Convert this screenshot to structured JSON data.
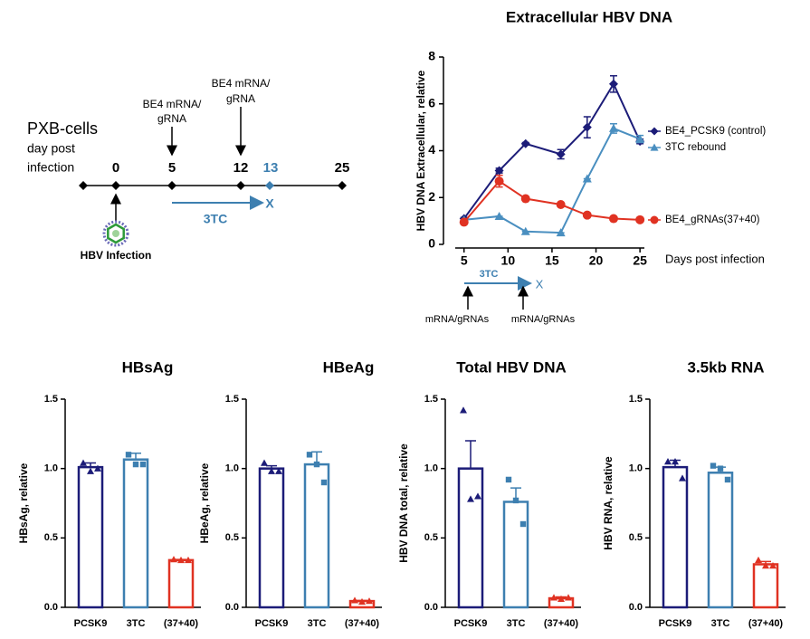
{
  "timeline": {
    "title": "PXB-cells",
    "axis_label": [
      "day post",
      "infection"
    ],
    "days": [
      "0",
      "5",
      "12",
      "13",
      "25"
    ],
    "treatments": [
      [
        "BE4 mRNA/",
        "gRNA"
      ],
      [
        "BE4 mRNA/",
        "gRNA"
      ]
    ],
    "drug": "3TC",
    "stop": "X",
    "infection": "HBV Infection"
  },
  "chart_data": [
    {
      "type": "line",
      "title": "Extracellular HBV DNA",
      "ylabel": "HBV DNA Extracellular, relative",
      "xlabel": "Days post infection",
      "x": [
        5,
        9,
        12,
        16,
        19,
        22,
        25
      ],
      "xlim": [
        4,
        25.5
      ],
      "xticks": [
        5,
        10,
        15,
        20,
        25
      ],
      "ylim": [
        0,
        8
      ],
      "yticks": [
        0,
        2,
        4,
        6,
        8
      ],
      "series": [
        {
          "name": "BE4_PCSK9 (control)",
          "color": "#1c1c78",
          "values": [
            1.1,
            3.15,
            4.3,
            3.85,
            5.0,
            6.85,
            4.4
          ],
          "errors": [
            0.05,
            0.1,
            0.05,
            0.2,
            0.45,
            0.35,
            0.1
          ]
        },
        {
          "name": "3TC rebound",
          "color": "#4a8fc0",
          "values": [
            1.05,
            1.2,
            0.55,
            0.5,
            2.8,
            4.95,
            4.5
          ],
          "errors": [
            0,
            0,
            0,
            0,
            0,
            0.2,
            0.15
          ]
        },
        {
          "name": "BE4_gRNAs(37+40)",
          "color": "#e03222",
          "values": [
            0.95,
            2.7,
            1.95,
            1.7,
            1.25,
            1.1,
            1.05
          ],
          "errors": [
            0.05,
            0.25,
            0,
            0,
            0,
            0,
            0
          ]
        }
      ],
      "annotations": {
        "drug": "3TC",
        "stop": "X",
        "doses": [
          "mRNA/gRNAs",
          "mRNA/gRNAs"
        ]
      }
    },
    {
      "type": "bar",
      "title": "HBsAg",
      "ylabel": "HBsAg, relative",
      "categories": [
        "PCSK9",
        "3TC",
        "(37+40)"
      ],
      "colors": [
        "#1c1c78",
        "#3d7fb0",
        "#e03222"
      ],
      "values": [
        1.01,
        1.065,
        0.34
      ],
      "errors": [
        0.03,
        0.045,
        0.005
      ],
      "points": [
        [
          1.04,
          0.98,
          1.0
        ],
        [
          1.1,
          1.03,
          1.03
        ],
        [
          0.345,
          0.34,
          0.34
        ]
      ],
      "ylim": [
        0,
        1.5
      ],
      "yticks": [
        {
          "value": 0,
          "label": "0.0"
        },
        0.5,
        {
          "value": 1,
          "label": "1.0"
        },
        1.5
      ]
    },
    {
      "type": "bar",
      "title": "HBeAg",
      "ylabel": "HBeAg, relative",
      "categories": [
        "PCSK9",
        "3TC",
        "(37+40)"
      ],
      "colors": [
        "#1c1c78",
        "#3d7fb0",
        "#e03222"
      ],
      "values": [
        1.0,
        1.03,
        0.045
      ],
      "errors": [
        0.02,
        0.09,
        0.005
      ],
      "points": [
        [
          1.04,
          0.98,
          0.98
        ],
        [
          1.1,
          1.03,
          0.9
        ],
        [
          0.05,
          0.04,
          0.045
        ]
      ],
      "ylim": [
        0,
        1.5
      ],
      "yticks": [
        {
          "value": 0,
          "label": "0.0"
        },
        0.5,
        {
          "value": 1,
          "label": "1.0"
        },
        1.5
      ]
    },
    {
      "type": "bar",
      "title": "Total HBV DNA",
      "ylabel": "HBV  DNA total, relative",
      "categories": [
        "PCSK9",
        "3TC",
        "(37+40)"
      ],
      "colors": [
        "#1c1c78",
        "#3d7fb0",
        "#e03222"
      ],
      "values": [
        1.0,
        0.76,
        0.065
      ],
      "errors": [
        0.2,
        0.1,
        0.01
      ],
      "points": [
        [
          1.42,
          0.78,
          0.8
        ],
        [
          0.92,
          0.77,
          0.6
        ],
        [
          0.07,
          0.06,
          0.07
        ]
      ],
      "ylim": [
        0,
        1.5
      ],
      "yticks": [
        {
          "value": 0,
          "label": "0.0"
        },
        0.5,
        {
          "value": 1,
          "label": "1.0"
        },
        1.5
      ]
    },
    {
      "type": "bar",
      "title": "3.5kb RNA",
      "ylabel": "HBV  RNA, relative",
      "categories": [
        "PCSK9",
        "3TC",
        "(37+40)"
      ],
      "colors": [
        "#1c1c78",
        "#3d7fb0",
        "#e03222"
      ],
      "values": [
        1.01,
        0.97,
        0.31
      ],
      "errors": [
        0.05,
        0.04,
        0.02
      ],
      "points": [
        [
          1.05,
          1.05,
          0.93
        ],
        [
          1.02,
          1.0,
          0.92
        ],
        [
          0.34,
          0.3,
          0.3
        ]
      ],
      "ylim": [
        0,
        1.5
      ],
      "yticks": [
        {
          "value": 0,
          "label": "0.0"
        },
        0.5,
        {
          "value": 1,
          "label": "1.0"
        },
        1.5
      ]
    }
  ]
}
